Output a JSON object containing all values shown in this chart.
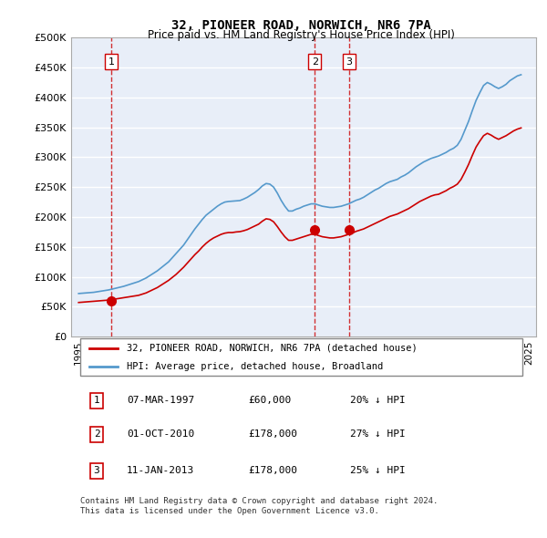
{
  "title": "32, PIONEER ROAD, NORWICH, NR6 7PA",
  "subtitle": "Price paid vs. HM Land Registry's House Price Index (HPI)",
  "ylabel_ticks": [
    "£0",
    "£50K",
    "£100K",
    "£150K",
    "£200K",
    "£250K",
    "£300K",
    "£350K",
    "£400K",
    "£450K",
    "£500K"
  ],
  "ytick_vals": [
    0,
    50000,
    100000,
    150000,
    200000,
    250000,
    300000,
    350000,
    400000,
    450000,
    500000
  ],
  "xlim_start": 1994.5,
  "xlim_end": 2025.5,
  "ylim": [
    0,
    500000
  ],
  "sale_dates": [
    1997.18,
    2010.75,
    2013.03
  ],
  "sale_prices": [
    60000,
    178000,
    178000
  ],
  "sale_labels": [
    "1",
    "2",
    "3"
  ],
  "legend_line1": "32, PIONEER ROAD, NORWICH, NR6 7PA (detached house)",
  "legend_line2": "HPI: Average price, detached house, Broadland",
  "table_rows": [
    [
      "1",
      "07-MAR-1997",
      "£60,000",
      "20% ↓ HPI"
    ],
    [
      "2",
      "01-OCT-2010",
      "£178,000",
      "27% ↓ HPI"
    ],
    [
      "3",
      "11-JAN-2013",
      "£178,000",
      "25% ↓ HPI"
    ]
  ],
  "footer": "Contains HM Land Registry data © Crown copyright and database right 2024.\nThis data is licensed under the Open Government Licence v3.0.",
  "bg_color": "#f0f4fa",
  "plot_bg": "#e8eef8",
  "red_line_color": "#cc0000",
  "blue_line_color": "#5599cc",
  "grid_color": "#ffffff",
  "sale_marker_color": "#cc0000",
  "vline_color": "#cc0000",
  "hpi_years": [
    1995,
    1995.25,
    1995.5,
    1995.75,
    1996,
    1996.25,
    1996.5,
    1996.75,
    1997,
    1997.25,
    1997.5,
    1997.75,
    1998,
    1998.25,
    1998.5,
    1998.75,
    1999,
    1999.25,
    1999.5,
    1999.75,
    2000,
    2000.25,
    2000.5,
    2000.75,
    2001,
    2001.25,
    2001.5,
    2001.75,
    2002,
    2002.25,
    2002.5,
    2002.75,
    2003,
    2003.25,
    2003.5,
    2003.75,
    2004,
    2004.25,
    2004.5,
    2004.75,
    2005,
    2005.25,
    2005.5,
    2005.75,
    2006,
    2006.25,
    2006.5,
    2006.75,
    2007,
    2007.25,
    2007.5,
    2007.75,
    2008,
    2008.25,
    2008.5,
    2008.75,
    2009,
    2009.25,
    2009.5,
    2009.75,
    2010,
    2010.25,
    2010.5,
    2010.75,
    2011,
    2011.25,
    2011.5,
    2011.75,
    2012,
    2012.25,
    2012.5,
    2012.75,
    2013,
    2013.25,
    2013.5,
    2013.75,
    2014,
    2014.25,
    2014.5,
    2014.75,
    2015,
    2015.25,
    2015.5,
    2015.75,
    2016,
    2016.25,
    2016.5,
    2016.75,
    2017,
    2017.25,
    2017.5,
    2017.75,
    2018,
    2018.25,
    2018.5,
    2018.75,
    2019,
    2019.25,
    2019.5,
    2019.75,
    2020,
    2020.25,
    2020.5,
    2020.75,
    2021,
    2021.25,
    2021.5,
    2021.75,
    2022,
    2022.25,
    2022.5,
    2022.75,
    2023,
    2023.25,
    2023.5,
    2023.75,
    2024,
    2024.25,
    2024.5
  ],
  "hpi_values": [
    72000,
    72500,
    73000,
    73500,
    74000,
    75000,
    76000,
    77000,
    78000,
    79500,
    81000,
    82500,
    84000,
    86000,
    88000,
    90000,
    92000,
    95000,
    98000,
    102000,
    106000,
    110000,
    115000,
    120000,
    125000,
    132000,
    139000,
    146000,
    153000,
    162000,
    171000,
    180000,
    188000,
    196000,
    203000,
    208000,
    213000,
    218000,
    222000,
    225000,
    226000,
    226500,
    227000,
    227500,
    230000,
    233000,
    237000,
    241000,
    246000,
    252000,
    256000,
    255000,
    250000,
    240000,
    228000,
    218000,
    210000,
    210000,
    213000,
    215000,
    218000,
    220000,
    222000,
    222000,
    220000,
    218000,
    217000,
    216000,
    216000,
    217000,
    218000,
    220000,
    222000,
    225000,
    228000,
    230000,
    233000,
    237000,
    241000,
    245000,
    248000,
    252000,
    256000,
    259000,
    261000,
    263000,
    267000,
    270000,
    274000,
    279000,
    284000,
    288000,
    292000,
    295000,
    298000,
    300000,
    302000,
    305000,
    308000,
    312000,
    315000,
    320000,
    330000,
    345000,
    360000,
    378000,
    395000,
    408000,
    420000,
    425000,
    422000,
    418000,
    415000,
    418000,
    422000,
    428000,
    432000,
    436000,
    438000
  ],
  "price_years": [
    1995,
    1995.25,
    1995.5,
    1995.75,
    1996,
    1996.25,
    1996.5,
    1996.75,
    1997,
    1997.25,
    1997.5,
    1997.75,
    1998,
    1998.25,
    1998.5,
    1998.75,
    1999,
    1999.25,
    1999.5,
    1999.75,
    2000,
    2000.25,
    2000.5,
    2000.75,
    2001,
    2001.25,
    2001.5,
    2001.75,
    2002,
    2002.25,
    2002.5,
    2002.75,
    2003,
    2003.25,
    2003.5,
    2003.75,
    2004,
    2004.25,
    2004.5,
    2004.75,
    2005,
    2005.25,
    2005.5,
    2005.75,
    2006,
    2006.25,
    2006.5,
    2006.75,
    2007,
    2007.25,
    2007.5,
    2007.75,
    2008,
    2008.25,
    2008.5,
    2008.75,
    2009,
    2009.25,
    2009.5,
    2009.75,
    2010,
    2010.25,
    2010.5,
    2010.75,
    2011,
    2011.25,
    2011.5,
    2011.75,
    2012,
    2012.25,
    2012.5,
    2012.75,
    2013,
    2013.25,
    2013.5,
    2013.75,
    2014,
    2014.25,
    2014.5,
    2014.75,
    2015,
    2015.25,
    2015.5,
    2015.75,
    2016,
    2016.25,
    2016.5,
    2016.75,
    2017,
    2017.25,
    2017.5,
    2017.75,
    2018,
    2018.25,
    2018.5,
    2018.75,
    2019,
    2019.25,
    2019.5,
    2019.75,
    2020,
    2020.25,
    2020.5,
    2020.75,
    2021,
    2021.25,
    2021.5,
    2021.75,
    2022,
    2022.25,
    2022.5,
    2022.75,
    2023,
    2023.25,
    2023.5,
    2023.75,
    2024,
    2024.25,
    2024.5
  ],
  "price_values": [
    57000,
    57500,
    58000,
    58500,
    59000,
    59500,
    60000,
    60500,
    61000,
    62000,
    63000,
    64000,
    65000,
    66000,
    67000,
    68000,
    69000,
    71000,
    73000,
    76000,
    79000,
    82000,
    86000,
    90000,
    94000,
    99000,
    104000,
    110000,
    116000,
    123000,
    130000,
    137000,
    143000,
    150000,
    156000,
    161000,
    165000,
    168000,
    171000,
    173000,
    174000,
    174000,
    175000,
    175500,
    177000,
    179000,
    182000,
    185000,
    188000,
    193000,
    197000,
    196000,
    192000,
    184000,
    175000,
    167000,
    161000,
    161000,
    163000,
    165000,
    167000,
    169000,
    171000,
    171000,
    169000,
    167000,
    166000,
    165000,
    165000,
    166000,
    167000,
    169000,
    171000,
    173000,
    176000,
    178000,
    180000,
    183000,
    186000,
    189000,
    192000,
    195000,
    198000,
    201000,
    203000,
    205000,
    208000,
    211000,
    214000,
    218000,
    222000,
    226000,
    229000,
    232000,
    235000,
    237000,
    238000,
    241000,
    244000,
    248000,
    251000,
    255000,
    263000,
    275000,
    288000,
    303000,
    317000,
    327000,
    336000,
    340000,
    337000,
    333000,
    330000,
    333000,
    336000,
    340000,
    344000,
    347000,
    349000
  ]
}
